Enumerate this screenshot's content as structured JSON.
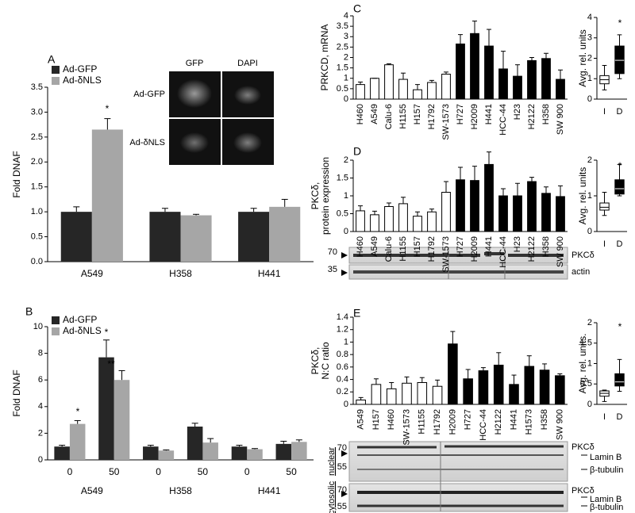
{
  "panels": [
    "A",
    "B",
    "C",
    "D",
    "E"
  ],
  "inset_image": {
    "columns": [
      "GFP",
      "DAPI"
    ],
    "rows": [
      "Ad-GFP",
      "Ad-δNLS"
    ]
  },
  "blots": {
    "D": {
      "markers": [
        "70",
        "35"
      ],
      "bands": [
        "PKCδ",
        "actin"
      ]
    },
    "E": {
      "fractions": [
        "nuclear",
        "cytosolic"
      ],
      "markers": [
        "70",
        "55",
        "70",
        "55"
      ],
      "bands": [
        "PKCδ",
        "Lamin B",
        "β-tubulin",
        "PKCδ",
        "Lamin B",
        "β-tubulin"
      ]
    }
  },
  "chart_data": [
    {
      "type": "bar",
      "ylabel": [
        "Fold DNAF"
      ],
      "categories": [
        "A549",
        "H358",
        "H441"
      ],
      "series": [
        {
          "name": "Ad-GFP",
          "color": "#262626",
          "values": [
            1.0,
            1.0,
            1.0
          ],
          "errors": [
            0.1,
            0.07,
            0.07
          ]
        },
        {
          "name": "Ad-δNLS",
          "color": "#a6a6a6",
          "values": [
            2.65,
            0.93,
            1.1
          ],
          "errors": [
            0.22,
            0.02,
            0.15
          ]
        }
      ],
      "ylim": [
        0,
        3.5
      ],
      "yticks": [
        {
          "value": 0,
          "label": "0.0"
        },
        0.5,
        {
          "value": 1,
          "label": "1.0"
        },
        1.5,
        {
          "value": 2,
          "label": "2.0"
        },
        2.5,
        {
          "value": 3,
          "label": "3.0"
        },
        3.5
      ],
      "legend": "upper left",
      "annotations": [
        "*"
      ]
    },
    {
      "type": "bar",
      "ylabel": [
        "Fold DNAF"
      ],
      "categories": [
        "0",
        "50",
        "0",
        "50",
        "0",
        "50"
      ],
      "groups": [
        "A549",
        "H358",
        "H441"
      ],
      "series": [
        {
          "name": "Ad-GFP",
          "color": "#262626",
          "values": [
            1.0,
            7.7,
            1.0,
            2.5,
            1.0,
            1.2
          ],
          "errors": [
            0.1,
            1.3,
            0.1,
            0.25,
            0.1,
            0.2
          ]
        },
        {
          "name": "Ad-δNLS",
          "color": "#a6a6a6",
          "values": [
            2.7,
            6.0,
            0.7,
            1.3,
            0.8,
            1.35
          ],
          "errors": [
            0.25,
            0.7,
            0.05,
            0.3,
            0.05,
            0.15
          ]
        }
      ],
      "ylim": [
        0,
        10
      ],
      "yticks": [
        0,
        2,
        4,
        6,
        8,
        10
      ],
      "legend": "upper left",
      "annotations": [
        "*",
        "*",
        "**"
      ]
    },
    {
      "type": "bar",
      "ylabel": [
        "PRKCD, mRNA"
      ],
      "categories": [
        "H460",
        "A549",
        "Calu-6",
        "H1155",
        "H157",
        "H1792",
        "SW-1573",
        "H727",
        "H2009",
        "H441",
        "HCC-44",
        "H23",
        "H2122",
        "H358",
        "SW 900"
      ],
      "values": [
        0.7,
        1.0,
        1.65,
        0.95,
        0.45,
        0.8,
        1.2,
        2.65,
        3.15,
        2.55,
        1.45,
        1.1,
        1.85,
        1.95,
        0.95
      ],
      "errors": [
        0.12,
        0.0,
        0.05,
        0.3,
        0.25,
        0.1,
        0.1,
        0.45,
        0.6,
        0.8,
        0.85,
        0.55,
        0.15,
        0.25,
        0.45
      ],
      "colors": [
        "#ffffff",
        "#ffffff",
        "#ffffff",
        "#ffffff",
        "#ffffff",
        "#ffffff",
        "#ffffff",
        "#000000",
        "#000000",
        "#000000",
        "#000000",
        "#000000",
        "#000000",
        "#000000",
        "#000000"
      ],
      "ylim": [
        0,
        4
      ],
      "yticks": [
        0,
        0.5,
        1,
        1.5,
        2,
        2.5,
        3,
        3.5,
        4
      ]
    },
    {
      "type": "box",
      "ylabel": [
        "Avg. rel. units"
      ],
      "categories": [
        "I",
        "D"
      ],
      "boxes": [
        {
          "min": 0.45,
          "q1": 0.75,
          "median": 0.95,
          "q3": 1.15,
          "max": 1.65
        },
        {
          "min": 1.0,
          "q1": 1.25,
          "median": 1.9,
          "q3": 2.6,
          "max": 3.15
        }
      ],
      "colors": [
        "#ffffff",
        "#000000"
      ],
      "ylim": [
        0,
        4
      ],
      "yticks": [
        0,
        1,
        2,
        3,
        4
      ],
      "annotations": [
        "*"
      ]
    },
    {
      "type": "bar",
      "ylabel": [
        "PKCδ,",
        "protein expression"
      ],
      "categories": [
        "H460",
        "A549",
        "Calu-6",
        "H1155",
        "H157",
        "H1792",
        "SW-1573",
        "H727",
        "H2009",
        "H441",
        "HCC-44",
        "H23",
        "H2122",
        "H358",
        "SW 900"
      ],
      "values": [
        0.58,
        0.47,
        0.7,
        0.78,
        0.43,
        0.55,
        1.1,
        1.45,
        1.43,
        1.88,
        1.0,
        1.0,
        1.4,
        1.07,
        0.98
      ],
      "errors": [
        0.14,
        0.1,
        0.1,
        0.18,
        0.12,
        0.08,
        0.3,
        0.35,
        0.4,
        0.35,
        0.2,
        0.35,
        0.12,
        0.18,
        0.3
      ],
      "colors": [
        "#ffffff",
        "#ffffff",
        "#ffffff",
        "#ffffff",
        "#ffffff",
        "#ffffff",
        "#ffffff",
        "#000000",
        "#000000",
        "#000000",
        "#000000",
        "#000000",
        "#000000",
        "#000000",
        "#000000"
      ],
      "ylim": [
        0,
        2
      ],
      "yticks": [
        0,
        0.5,
        1,
        1.5,
        2
      ]
    },
    {
      "type": "box",
      "ylabel": [
        "Avg. rel. units"
      ],
      "categories": [
        "I",
        "D"
      ],
      "boxes": [
        {
          "min": 0.45,
          "q1": 0.6,
          "median": 0.68,
          "q3": 0.8,
          "max": 1.1
        },
        {
          "min": 1.0,
          "q1": 1.05,
          "median": 1.2,
          "q3": 1.45,
          "max": 1.88
        }
      ],
      "colors": [
        "#ffffff",
        "#000000"
      ],
      "ylim": [
        0,
        2
      ],
      "yticks": [
        0,
        1,
        2
      ],
      "annotations": [
        "*"
      ]
    },
    {
      "type": "bar",
      "ylabel": [
        "PKCδ,",
        "N:C ratio"
      ],
      "categories": [
        "A549",
        "H157",
        "H460",
        "SW-1573",
        "H1155",
        "H1792",
        "H2009",
        "H727",
        "HCC-44",
        "H2122",
        "H441",
        "H1573",
        "H358",
        "SW 900"
      ],
      "values": [
        0.07,
        0.32,
        0.25,
        0.34,
        0.35,
        0.29,
        0.97,
        0.41,
        0.54,
        0.63,
        0.32,
        0.61,
        0.55,
        0.46
      ],
      "errors": [
        0.04,
        0.09,
        0.1,
        0.1,
        0.08,
        0.1,
        0.2,
        0.15,
        0.05,
        0.2,
        0.15,
        0.17,
        0.1,
        0.03
      ],
      "colors": [
        "#ffffff",
        "#ffffff",
        "#ffffff",
        "#ffffff",
        "#ffffff",
        "#ffffff",
        "#000000",
        "#000000",
        "#000000",
        "#000000",
        "#000000",
        "#000000",
        "#000000",
        "#000000"
      ],
      "ylim": [
        0,
        1.4
      ],
      "yticks": [
        0,
        0.2,
        0.4,
        0.6,
        0.8,
        1,
        1.2,
        1.4
      ]
    },
    {
      "type": "box",
      "ylabel": [
        "Avg. rel. units."
      ],
      "categories": [
        "I",
        "D"
      ],
      "boxes": [
        {
          "min": 0.07,
          "q1": 0.2,
          "median": 0.27,
          "q3": 0.33,
          "max": 0.35
        },
        {
          "min": 0.32,
          "q1": 0.45,
          "median": 0.55,
          "q3": 0.75,
          "max": 1.1
        }
      ],
      "colors": [
        "#ffffff",
        "#000000"
      ],
      "ylim": [
        0,
        2
      ],
      "yticks": [
        0,
        0.5,
        1,
        1.5,
        2
      ],
      "annotations": [
        "*"
      ]
    }
  ]
}
